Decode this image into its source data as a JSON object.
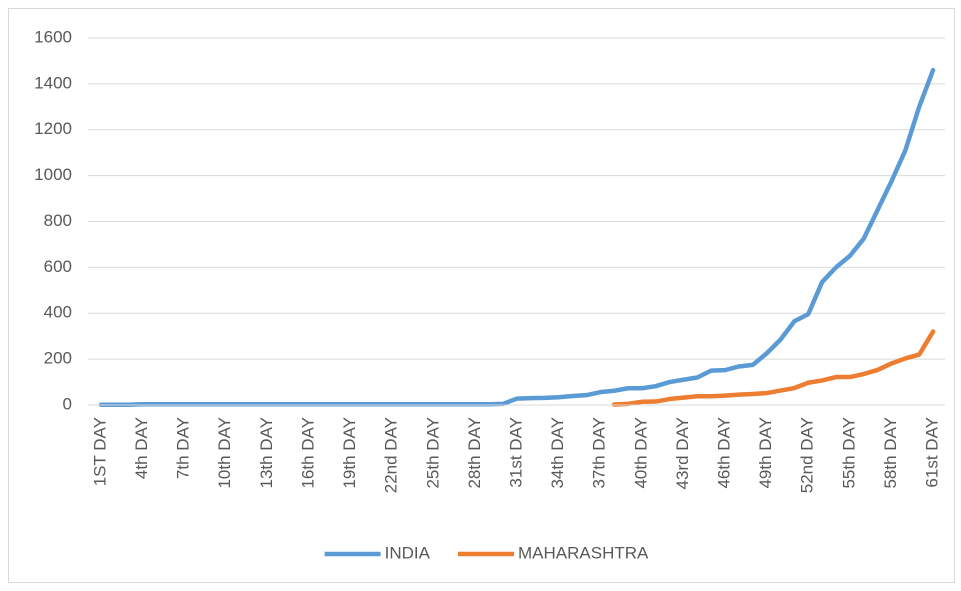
{
  "chart_data": {
    "type": "line",
    "categories": [
      "1ST DAY",
      null,
      null,
      "4th DAY",
      null,
      null,
      "7th DAY",
      null,
      null,
      "10th DAY",
      null,
      null,
      "13th DAY",
      null,
      null,
      "16th DAY",
      null,
      null,
      "19th DAY",
      null,
      null,
      "22nd DAY",
      null,
      null,
      "25th DAY",
      null,
      null,
      "28th DAY",
      null,
      null,
      "31st DAY",
      null,
      null,
      "34th DAY",
      null,
      null,
      "37th DAY",
      null,
      null,
      "40th DAY",
      null,
      null,
      "43rd DAY",
      null,
      null,
      "46th DAY",
      null,
      null,
      "49th DAY",
      null,
      null,
      "52nd DAY",
      null,
      null,
      "55th DAY",
      null,
      null,
      "58th DAY",
      null,
      null,
      "61st DAY"
    ],
    "series": [
      {
        "name": "INDIA",
        "color": "#5b9bd5",
        "values": [
          1,
          1,
          1,
          3,
          3,
          3,
          3,
          3,
          3,
          3,
          3,
          3,
          3,
          3,
          3,
          3,
          3,
          3,
          3,
          3,
          3,
          3,
          3,
          3,
          3,
          3,
          3,
          3,
          3,
          5,
          28,
          30,
          31,
          34,
          39,
          43,
          56,
          62,
          73,
          73,
          82,
          100,
          110,
          120,
          150,
          152,
          168,
          175,
          225,
          285,
          365,
          396,
          536,
          600,
          650,
          725,
          850,
          975,
          1110,
          1300,
          1460
        ]
      },
      {
        "name": "MAHARASHTRA",
        "color": "#ed7d31",
        "values": [
          null,
          null,
          null,
          null,
          null,
          null,
          null,
          null,
          null,
          null,
          null,
          null,
          null,
          null,
          null,
          null,
          null,
          null,
          null,
          null,
          null,
          null,
          null,
          null,
          null,
          null,
          null,
          null,
          null,
          null,
          null,
          null,
          null,
          null,
          null,
          null,
          null,
          2,
          5,
          14,
          15,
          26,
          32,
          38,
          38,
          41,
          45,
          48,
          52,
          63,
          74,
          97,
          107,
          122,
          122,
          135,
          153,
          181,
          203,
          220,
          320
        ]
      }
    ],
    "ylim": [
      0,
      1600
    ],
    "yticks": [
      0,
      200,
      400,
      600,
      800,
      1000,
      1200,
      1400,
      1600
    ],
    "grid": true,
    "legend": "bottom"
  }
}
